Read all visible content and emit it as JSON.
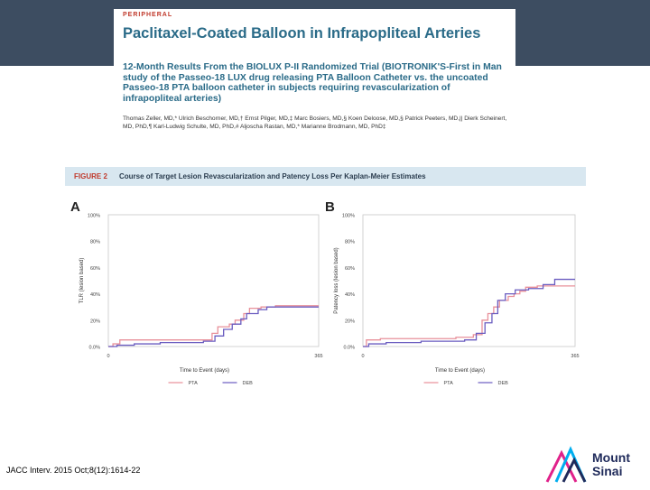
{
  "paper": {
    "kicker": "PERIPHERAL",
    "title": "Paclitaxel-Coated Balloon in Infrapopliteal Arteries",
    "subtitle": "12-Month Results From the BIOLUX P-II Randomized Trial (BIOTRONIK'S-First in Man study of the Passeo-18 LUX drug releasing PTA Balloon Catheter vs. the uncoated Passeo-18 PTA balloon catheter in subjects requiring revascularization of infrapopliteal arteries)",
    "authors": "Thomas Zeller, MD,* Ulrich Beschorner, MD,† Ernst Pilger, MD,‡ Marc Bosiers, MD,§ Koen Deloose, MD,§ Patrick Peeters, MD,|| Dierk Scheinert, MD, PhD,¶ Karl-Ludwig Schulte, MD, PhD,# Aljoscha Rastan, MD,* Marianne Brodmann, MD, PhD‡"
  },
  "figure": {
    "label": "FIGURE 2",
    "caption": "Course of Target Lesion Revascularization and Patency Loss Per Kaplan-Meier Estimates"
  },
  "citation": "JACC Interv. 2015 Oct;8(12):1614-22",
  "logo": {
    "line1": "Mount",
    "line2": "Sinai",
    "colors": [
      "#e0218a",
      "#00aeef",
      "#1f2a5a"
    ]
  },
  "colors": {
    "pta": "#e8909a",
    "deb": "#6a5cc0"
  },
  "chart_data": [
    {
      "type": "line",
      "panel": "A",
      "xlabel": "Time to Event (days)",
      "ylabel": "TLR (lesion based)",
      "x_ticks": [
        "0",
        "365"
      ],
      "y_ticks": [
        "100%",
        "80%",
        "60%",
        "40%",
        "20%",
        "0.0%"
      ],
      "xlim": [
        0,
        365
      ],
      "ylim": [
        0,
        100
      ],
      "legend": [
        "PTA",
        "DEB"
      ],
      "series": [
        {
          "name": "PTA",
          "x": [
            0,
            8,
            20,
            55,
            120,
            180,
            190,
            210,
            220,
            235,
            245,
            265,
            290,
            320,
            365
          ],
          "y": [
            0,
            2,
            5,
            5,
            5,
            10,
            15,
            17,
            20,
            25,
            29,
            30,
            31,
            31,
            31
          ]
        },
        {
          "name": "DEB",
          "x": [
            0,
            15,
            45,
            90,
            165,
            185,
            200,
            215,
            230,
            240,
            260,
            275,
            300,
            340,
            365
          ],
          "y": [
            0,
            1,
            2,
            3,
            4,
            8,
            13,
            17,
            21,
            25,
            28,
            30,
            30,
            30,
            30
          ]
        }
      ]
    },
    {
      "type": "line",
      "panel": "B",
      "xlabel": "Time to Event (days)",
      "ylabel": "Patency loss (lesion based)",
      "x_ticks": [
        "0",
        "365"
      ],
      "y_ticks": [
        "100%",
        "80%",
        "60%",
        "40%",
        "20%",
        "0.0%"
      ],
      "xlim": [
        0,
        365
      ],
      "ylim": [
        0,
        100
      ],
      "legend": [
        "PTA",
        "DEB"
      ],
      "series": [
        {
          "name": "PTA",
          "x": [
            0,
            6,
            30,
            160,
            190,
            205,
            215,
            225,
            235,
            250,
            260,
            270,
            280,
            300,
            365
          ],
          "y": [
            0,
            5,
            6,
            7,
            9,
            20,
            25,
            30,
            35,
            38,
            40,
            42,
            45,
            46,
            46
          ]
        },
        {
          "name": "DEB",
          "x": [
            0,
            10,
            40,
            100,
            175,
            195,
            210,
            222,
            232,
            245,
            262,
            285,
            310,
            330,
            365
          ],
          "y": [
            0,
            2,
            3,
            4,
            5,
            10,
            18,
            25,
            35,
            40,
            43,
            44,
            47,
            51,
            51
          ]
        }
      ]
    }
  ]
}
